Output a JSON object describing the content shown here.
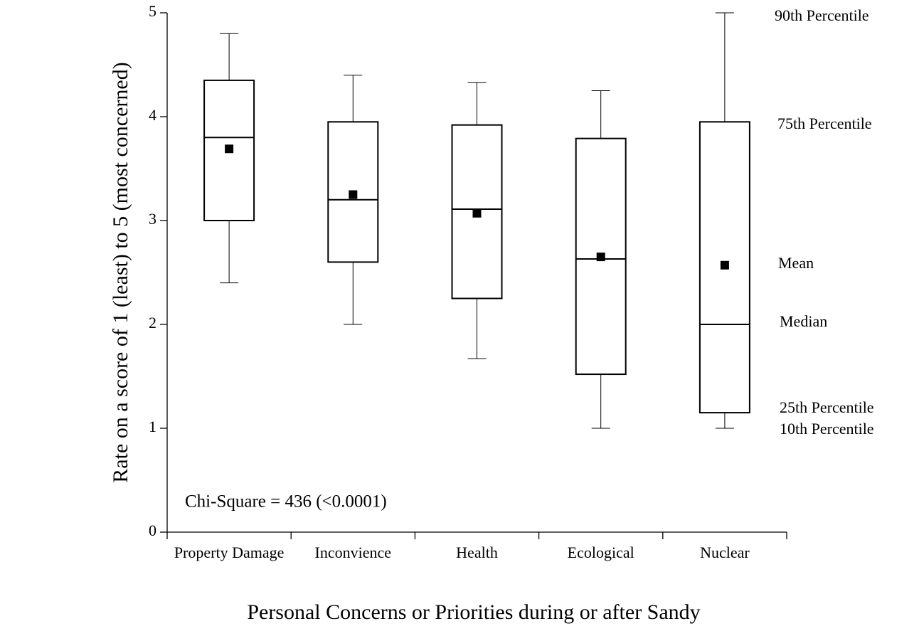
{
  "chart_data": {
    "type": "boxplot",
    "title": "",
    "xlabel": "Personal Concerns or Priorities during or after Sandy",
    "ylabel": "Rate on a score of 1 (least) to 5 (most concerned)",
    "ylim": [
      0,
      5
    ],
    "yticks": [
      "0",
      "1",
      "2",
      "3",
      "4",
      "5"
    ],
    "grid": false,
    "categories": [
      "Property Damage",
      "Inconvience",
      "Health",
      "Ecological",
      "Nuclear"
    ],
    "series": [
      {
        "category": "Property Damage",
        "p10": 2.4,
        "p25": 3.0,
        "median": 3.8,
        "p75": 4.35,
        "p90": 4.8,
        "mean": 3.69
      },
      {
        "category": "Inconvience",
        "p10": 2.0,
        "p25": 2.6,
        "median": 3.2,
        "p75": 3.95,
        "p90": 4.4,
        "mean": 3.25
      },
      {
        "category": "Health",
        "p10": 1.67,
        "p25": 2.25,
        "median": 3.11,
        "p75": 3.92,
        "p90": 4.33,
        "mean": 3.07
      },
      {
        "category": "Ecological",
        "p10": 1.0,
        "p25": 1.52,
        "median": 2.63,
        "p75": 3.79,
        "p90": 4.25,
        "mean": 2.65
      },
      {
        "category": "Nuclear",
        "p10": 1.0,
        "p25": 1.15,
        "median": 2.0,
        "p75": 3.95,
        "p90": 5.0,
        "mean": 2.57
      }
    ],
    "legend": {
      "position": "right",
      "entries": [
        "90th Percentile",
        "75th Percentile",
        "Mean",
        "Median",
        "25th Percentile",
        "10th Percentile"
      ]
    },
    "annotation": "Chi-Square = 436 (<0.0001)"
  }
}
